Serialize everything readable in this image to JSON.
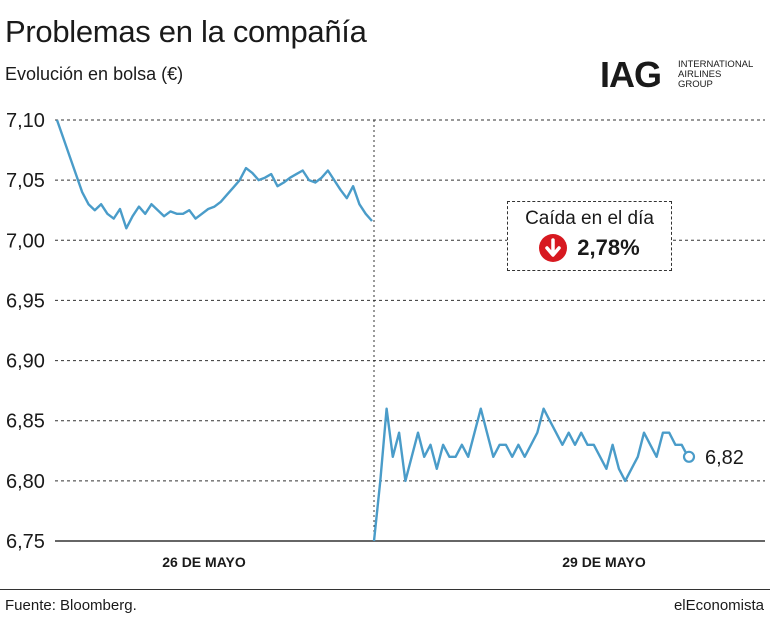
{
  "title": "Problemas en la compañía",
  "subtitle": "Evolución en bolsa (€)",
  "logo": {
    "mark": "IAG",
    "words": [
      "INTERNATIONAL",
      "AIRLINES",
      "GROUP"
    ]
  },
  "callout": {
    "label": "Caída en el día",
    "value": "2,78%",
    "icon": "down-arrow-icon",
    "icon_color": "#d71920"
  },
  "footer": {
    "source": "Fuente: Bloomberg.",
    "brand": "elEconomista"
  },
  "colors": {
    "line": "#4a9cc9",
    "grid": "#333333",
    "accent": "#d71920"
  },
  "chart_data": {
    "type": "line",
    "title": "Problemas en la compañía",
    "ylabel": "",
    "xlabel": "",
    "ylim": [
      6.75,
      7.1
    ],
    "yticks": [
      "7,10",
      "7,05",
      "7,00",
      "6,95",
      "6,90",
      "6,85",
      "6,80",
      "6,75"
    ],
    "ytick_values": [
      7.1,
      7.05,
      7.0,
      6.95,
      6.9,
      6.85,
      6.8,
      6.75
    ],
    "grid": "horizontal dashed",
    "day_labels": [
      "26 DE MAYO",
      "29 DE MAYO"
    ],
    "end_label": "6,82",
    "end_value": 6.82,
    "series": [
      {
        "day": "26 DE MAYO",
        "x": [
          0,
          0.5,
          1,
          1.5,
          2,
          2.5,
          3,
          3.5,
          4,
          4.5,
          5,
          5.5,
          6,
          6.5,
          7,
          7.5,
          8,
          8.5,
          9,
          9.5,
          10,
          10.5,
          11,
          11.5,
          12,
          12.5,
          13,
          13.5,
          14,
          14.5,
          15,
          15.5,
          16,
          16.5,
          17,
          17.5,
          18,
          18.5,
          19,
          19.5,
          20,
          20.5,
          21,
          21.5,
          22,
          22.5,
          23,
          23.5,
          24,
          24.5,
          25
        ],
        "values": [
          7.1,
          7.085,
          7.07,
          7.055,
          7.04,
          7.03,
          7.025,
          7.03,
          7.022,
          7.018,
          7.026,
          7.01,
          7.02,
          7.028,
          7.022,
          7.03,
          7.025,
          7.02,
          7.024,
          7.022,
          7.022,
          7.025,
          7.018,
          7.022,
          7.026,
          7.028,
          7.032,
          7.038,
          7.044,
          7.05,
          7.06,
          7.056,
          7.05,
          7.052,
          7.055,
          7.045,
          7.048,
          7.052,
          7.055,
          7.058,
          7.05,
          7.048,
          7.052,
          7.058,
          7.05,
          7.042,
          7.035,
          7.045,
          7.03,
          7.022,
          7.016
        ]
      },
      {
        "day": "29 DE MAYO",
        "x": [
          0,
          0.5,
          1,
          1.5,
          2,
          2.5,
          3,
          3.5,
          4,
          4.5,
          5,
          5.5,
          6,
          6.5,
          7,
          7.5,
          8,
          8.5,
          9,
          9.5,
          10,
          10.5,
          11,
          11.5,
          12,
          12.5,
          13,
          13.5,
          14,
          14.5,
          15,
          15.5,
          16,
          16.5,
          17,
          17.5,
          18,
          18.5,
          19,
          19.5,
          20,
          20.5,
          21,
          21.5,
          22,
          22.5,
          23,
          23.5,
          24,
          24.5,
          25
        ],
        "values": [
          6.75,
          6.8,
          6.86,
          6.82,
          6.84,
          6.8,
          6.82,
          6.84,
          6.82,
          6.83,
          6.81,
          6.83,
          6.82,
          6.82,
          6.83,
          6.82,
          6.84,
          6.86,
          6.84,
          6.82,
          6.83,
          6.83,
          6.82,
          6.83,
          6.82,
          6.83,
          6.84,
          6.86,
          6.85,
          6.84,
          6.83,
          6.84,
          6.83,
          6.84,
          6.83,
          6.83,
          6.82,
          6.81,
          6.83,
          6.81,
          6.8,
          6.81,
          6.82,
          6.84,
          6.83,
          6.82,
          6.84,
          6.84,
          6.83,
          6.83,
          6.82
        ]
      }
    ]
  }
}
